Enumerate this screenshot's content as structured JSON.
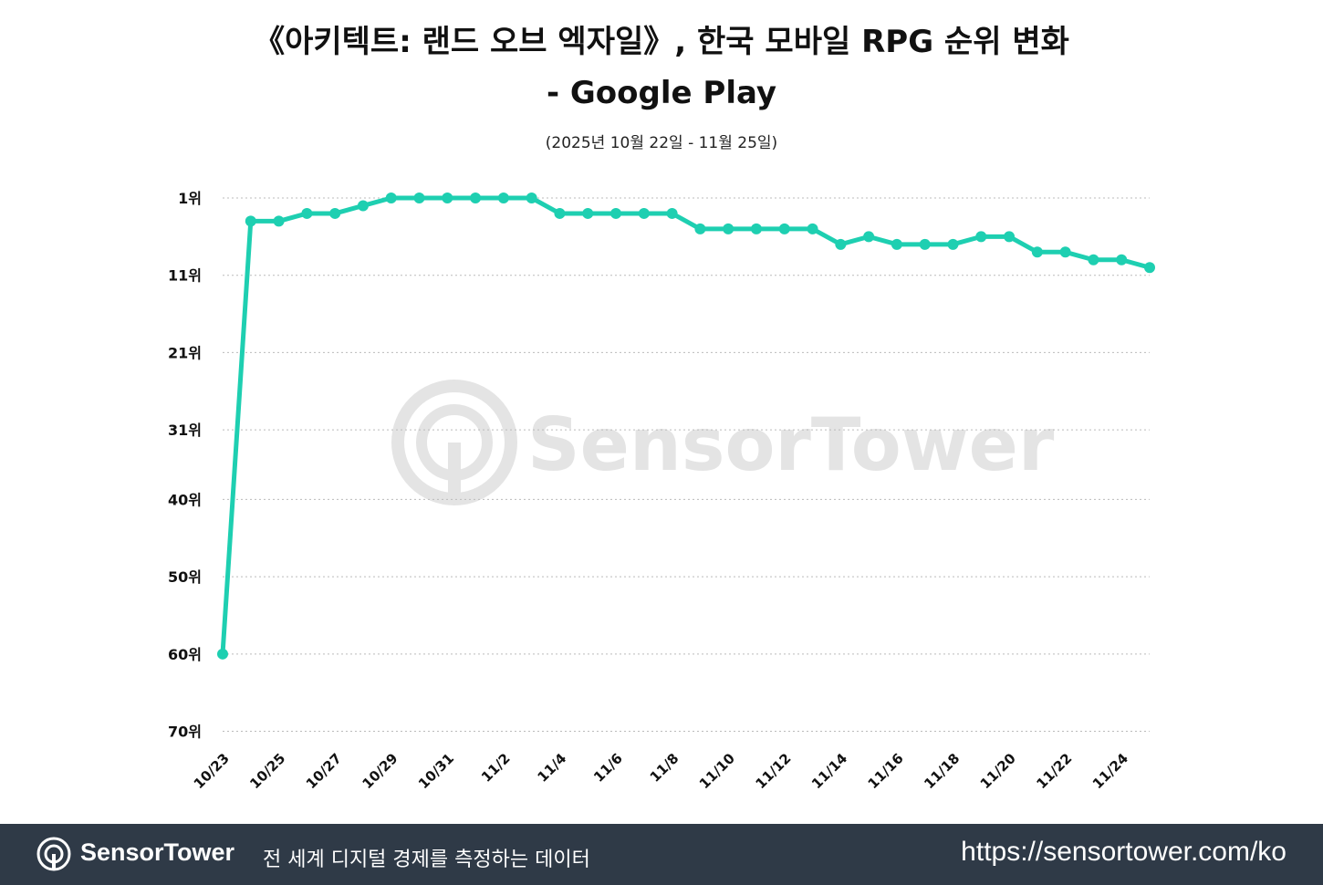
{
  "header": {
    "title_line1": "《아키텍트: 랜드 오브 엑자일》, 한국 모바일 RPG 순위 변화",
    "title_line2": "- Google Play",
    "subtitle": "(2025년 10월 22일 - 11월 25일)"
  },
  "watermark": {
    "text": "SensorTower"
  },
  "footer": {
    "logo_text": "SensorTower",
    "tagline": "전 세계 디지털 경제를 측정하는 데이터",
    "url": "https://sensortower.com/ko"
  },
  "colors": {
    "line": "#1ecfb1",
    "grid": "#bbbbbb",
    "footer_bg": "#2f3a47",
    "watermark": "#e4e4e4"
  },
  "chart_data": {
    "type": "line",
    "title": "《아키텍트: 랜드 오브 엑자일》, 한국 모바일 RPG 순위 변화 - Google Play",
    "subtitle": "(2025년 10월 22일 - 11월 25일)",
    "y_reversed": true,
    "ylim": [
      1,
      71
    ],
    "y_ticks": [
      1,
      11,
      21,
      31,
      40,
      50,
      60,
      70
    ],
    "y_tick_labels": [
      "1위",
      "11위",
      "21위",
      "31위",
      "40위",
      "50위",
      "60위",
      "70위"
    ],
    "x_tick_labels": [
      "10/23",
      "10/25",
      "10/27",
      "10/29",
      "10/31",
      "11/2",
      "11/4",
      "11/6",
      "11/8",
      "11/10",
      "11/12",
      "11/14",
      "11/16",
      "11/18",
      "11/20",
      "11/22",
      "11/24"
    ],
    "grid": true,
    "series": [
      {
        "x": [
          "10/23",
          "10/24",
          "10/25",
          "10/26",
          "10/27",
          "10/28",
          "10/29",
          "10/30",
          "10/31",
          "11/1",
          "11/2",
          "11/3",
          "11/4",
          "11/5",
          "11/6",
          "11/7",
          "11/8",
          "11/9",
          "11/10",
          "11/11",
          "11/12",
          "11/13",
          "11/14",
          "11/15",
          "11/16",
          "11/17",
          "11/18",
          "11/19",
          "11/20",
          "11/21",
          "11/22",
          "11/23",
          "11/24",
          "11/25"
        ],
        "values": [
          60,
          4,
          4,
          3,
          3,
          2,
          1,
          1,
          1,
          1,
          1,
          1,
          3,
          3,
          3,
          3,
          3,
          5,
          5,
          5,
          5,
          5,
          7,
          6,
          7,
          7,
          7,
          6,
          6,
          8,
          8,
          9,
          9,
          10
        ]
      }
    ]
  }
}
